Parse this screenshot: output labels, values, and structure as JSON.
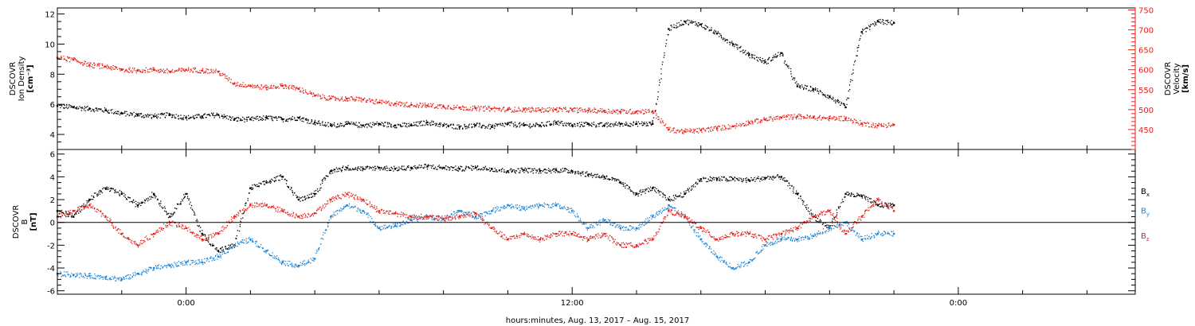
{
  "colors": {
    "black": "#000000",
    "red": "#e8201a",
    "blue": "#1c84d6",
    "frame": "#000000"
  },
  "xaxis": {
    "label": "hours:minutes, Aug. 13, 2017 – Aug. 15, 2017",
    "range_hours": [
      -4,
      29.5
    ],
    "major_ticks": [
      {
        "hour": 0,
        "label": "0:00"
      },
      {
        "hour": 12,
        "label": "12:00"
      },
      {
        "hour": 24,
        "label": "0:00"
      }
    ],
    "minor_step_hours": 2
  },
  "top_panel": {
    "left_axis": {
      "label_lines": [
        "DSCOVR",
        "Ion Density"
      ],
      "unit": "[cm⁻³]",
      "range": [
        3,
        12.4
      ],
      "ticks": [
        4,
        6,
        8,
        10,
        12
      ],
      "tick_labels": [
        "4",
        "6",
        "8",
        "10",
        "12"
      ]
    },
    "right_axis": {
      "label_lines": [
        "DSCOVR",
        "Velocity"
      ],
      "unit": "[km/s]",
      "range": [
        400,
        755
      ],
      "ticks": [
        450,
        500,
        550,
        600,
        650,
        700,
        750
      ],
      "tick_labels": [
        "450",
        "500",
        "550",
        "600",
        "650",
        "700",
        "750"
      ]
    }
  },
  "bottom_panel": {
    "axis": {
      "label_lines": [
        "DSCOVR",
        "B"
      ],
      "unit": "[nT]",
      "range": [
        -6.3,
        6.4
      ],
      "ticks": [
        -6,
        -4,
        -2,
        0,
        2,
        4,
        6
      ],
      "tick_labels": [
        "-6",
        "-4",
        "-2",
        "0",
        "2",
        "4",
        "6"
      ]
    },
    "legend": [
      {
        "base": "B",
        "sub": "x",
        "color": "#000000"
      },
      {
        "base": "B",
        "sub": "y",
        "color": "#1c84d6"
      },
      {
        "base": "B",
        "sub": "z",
        "color": "#e8201a"
      }
    ]
  },
  "chart_data": [
    {
      "type": "scatter",
      "panel": "top",
      "xlabel": "hours:minutes, Aug. 13, 2017 – Aug. 15, 2017",
      "ylabel": "DSCOVR Ion Density [cm⁻³]",
      "y2label": "DSCOVR Velocity [km/s]",
      "xlim": [
        -4,
        29.5
      ],
      "ylim": [
        3,
        12.4
      ],
      "y2lim": [
        400,
        755
      ],
      "series": [
        {
          "axis": "left",
          "color": "#000000",
          "x": [
            -4,
            -3.5,
            -3,
            -2.5,
            -2,
            -1.5,
            -1,
            -0.5,
            0,
            0.5,
            1,
            1.5,
            2,
            2.5,
            3,
            3.5,
            4,
            4.5,
            5,
            5.5,
            6,
            6.5,
            7,
            7.5,
            8,
            8.5,
            9,
            9.5,
            10,
            10.5,
            11,
            11.5,
            12,
            12.5,
            13,
            13.5,
            14,
            14.5,
            15,
            15.5,
            16,
            16.5,
            17,
            17.5,
            18,
            18.5,
            19,
            19.5,
            20,
            20.5,
            21,
            21.5,
            22
          ],
          "y": [
            5.9,
            5.8,
            5.7,
            5.6,
            5.4,
            5.3,
            5.2,
            5.3,
            5.1,
            5.2,
            5.3,
            5.0,
            5.0,
            5.1,
            5.0,
            5.1,
            4.8,
            4.6,
            4.7,
            4.6,
            4.7,
            4.6,
            4.6,
            4.8,
            4.6,
            4.5,
            4.6,
            4.5,
            4.7,
            4.6,
            4.6,
            4.8,
            4.6,
            4.7,
            4.6,
            4.7,
            4.7,
            4.7,
            11.0,
            11.5,
            11.3,
            10.7,
            10.0,
            9.3,
            8.8,
            9.4,
            7.2,
            7.0,
            6.5,
            5.8,
            10.8,
            11.5,
            11.4
          ]
        },
        {
          "axis": "right",
          "color": "#e8201a",
          "x": [
            -4,
            -3.5,
            -3,
            -2.5,
            -2,
            -1.5,
            -1,
            -0.5,
            0,
            0.5,
            1,
            1.5,
            2,
            2.5,
            3,
            3.5,
            4,
            4.5,
            5,
            5.5,
            6,
            6.5,
            7,
            7.5,
            8,
            8.5,
            9,
            9.5,
            10,
            10.5,
            11,
            11.5,
            12,
            12.5,
            13,
            13.5,
            14,
            14.5,
            15,
            15.5,
            16,
            16.5,
            17,
            17.5,
            18,
            18.5,
            19,
            19.5,
            20,
            20.5,
            21,
            21.5,
            22
          ],
          "y": [
            630,
            625,
            612,
            608,
            600,
            598,
            600,
            595,
            600,
            598,
            595,
            565,
            560,
            555,
            560,
            552,
            535,
            528,
            527,
            525,
            518,
            515,
            512,
            510,
            508,
            505,
            503,
            502,
            500,
            500,
            499,
            500,
            499,
            498,
            497,
            495,
            495,
            496,
            450,
            445,
            448,
            453,
            458,
            468,
            475,
            480,
            483,
            480,
            478,
            478,
            465,
            460,
            462
          ]
        }
      ]
    },
    {
      "type": "scatter",
      "panel": "bottom",
      "xlabel": "hours:minutes, Aug. 13, 2017 – Aug. 15, 2017",
      "ylabel": "DSCOVR B [nT]",
      "xlim": [
        -4,
        29.5
      ],
      "ylim": [
        -6.3,
        6.4
      ],
      "series": [
        {
          "name": "Bx",
          "color": "#000000",
          "x": [
            -4,
            -3.5,
            -3,
            -2.5,
            -2,
            -1.5,
            -1,
            -0.5,
            0,
            0.5,
            1,
            1.5,
            2,
            2.5,
            3,
            3.5,
            4,
            4.5,
            5,
            5.5,
            6,
            6.5,
            7,
            7.5,
            8,
            8.5,
            9,
            9.5,
            10,
            10.5,
            11,
            11.5,
            12,
            12.5,
            13,
            13.5,
            14,
            14.5,
            15,
            15.5,
            16,
            16.5,
            17,
            17.5,
            18,
            18.5,
            19,
            19.5,
            20,
            20.5,
            21,
            21.5,
            22
          ],
          "y": [
            1.0,
            0.5,
            2.0,
            3.0,
            2.5,
            1.5,
            2.5,
            0.5,
            2.5,
            -1.0,
            -2.5,
            -2.0,
            3.0,
            3.5,
            4.0,
            2.0,
            2.5,
            4.5,
            4.8,
            4.7,
            4.8,
            4.7,
            4.8,
            4.9,
            4.8,
            4.7,
            4.8,
            4.7,
            4.5,
            4.6,
            4.5,
            4.6,
            4.5,
            4.2,
            4.0,
            3.5,
            2.5,
            3.0,
            2.0,
            2.5,
            3.8,
            3.8,
            3.8,
            3.7,
            3.9,
            4.0,
            2.5,
            0.5,
            -0.5,
            2.5,
            2.3,
            1.5,
            1.5
          ]
        },
        {
          "name": "By",
          "color": "#1c84d6",
          "x": [
            -4,
            -3.5,
            -3,
            -2.5,
            -2,
            -1.5,
            -1,
            -0.5,
            0,
            0.5,
            1,
            1.5,
            2,
            2.5,
            3,
            3.5,
            4,
            4.5,
            5,
            5.5,
            6,
            6.5,
            7,
            7.5,
            8,
            8.5,
            9,
            9.5,
            10,
            10.5,
            11,
            11.5,
            12,
            12.5,
            13,
            13.5,
            14,
            14.5,
            15,
            15.5,
            16,
            16.5,
            17,
            17.5,
            18,
            18.5,
            19,
            19.5,
            20,
            20.5,
            21,
            21.5,
            22
          ],
          "y": [
            -4.5,
            -4.6,
            -4.7,
            -4.8,
            -5.0,
            -4.5,
            -4.0,
            -3.8,
            -3.5,
            -3.5,
            -3.0,
            -2.0,
            -1.5,
            -2.5,
            -3.5,
            -3.8,
            -3.2,
            0.5,
            1.5,
            1.0,
            -0.5,
            -0.3,
            0.2,
            0.5,
            0.3,
            1.0,
            0.5,
            1.0,
            1.5,
            1.2,
            1.5,
            1.5,
            1.0,
            -0.5,
            0.2,
            -0.5,
            -0.5,
            0.5,
            1.5,
            0.5,
            -1.5,
            -3.0,
            -4.0,
            -3.5,
            -2.0,
            -1.5,
            -1.5,
            -1.2,
            -0.5,
            0.0,
            -1.5,
            -1.0,
            -1.0
          ]
        },
        {
          "name": "Bz",
          "color": "#e8201a",
          "x": [
            -4,
            -3.5,
            -3,
            -2.5,
            -2,
            -1.5,
            -1,
            -0.5,
            0,
            0.5,
            1,
            1.5,
            2,
            2.5,
            3,
            3.5,
            4,
            4.5,
            5,
            5.5,
            6,
            6.5,
            7,
            7.5,
            8,
            8.5,
            9,
            9.5,
            10,
            10.5,
            11,
            11.5,
            12,
            12.5,
            13,
            13.5,
            14,
            14.5,
            15,
            15.5,
            16,
            16.5,
            17,
            17.5,
            18,
            18.5,
            19,
            19.5,
            20,
            20.5,
            21,
            21.5,
            22
          ],
          "y": [
            0.5,
            1.0,
            1.5,
            0.5,
            -1.0,
            -2.0,
            -1.0,
            0.0,
            -0.5,
            -1.5,
            -1.0,
            0.5,
            1.5,
            1.5,
            1.0,
            0.5,
            0.8,
            2.0,
            2.5,
            2.0,
            1.0,
            0.8,
            0.5,
            0.5,
            0.3,
            0.5,
            0.8,
            -0.5,
            -1.5,
            -1.0,
            -1.5,
            -1.0,
            -1.0,
            -1.5,
            -1.0,
            -2.0,
            -2.0,
            -1.5,
            1.0,
            0.5,
            -0.5,
            -1.5,
            -1.0,
            -1.0,
            -1.5,
            -1.0,
            -0.5,
            0.5,
            1.0,
            -1.0,
            0.5,
            2.0,
            1.0
          ]
        }
      ]
    }
  ]
}
